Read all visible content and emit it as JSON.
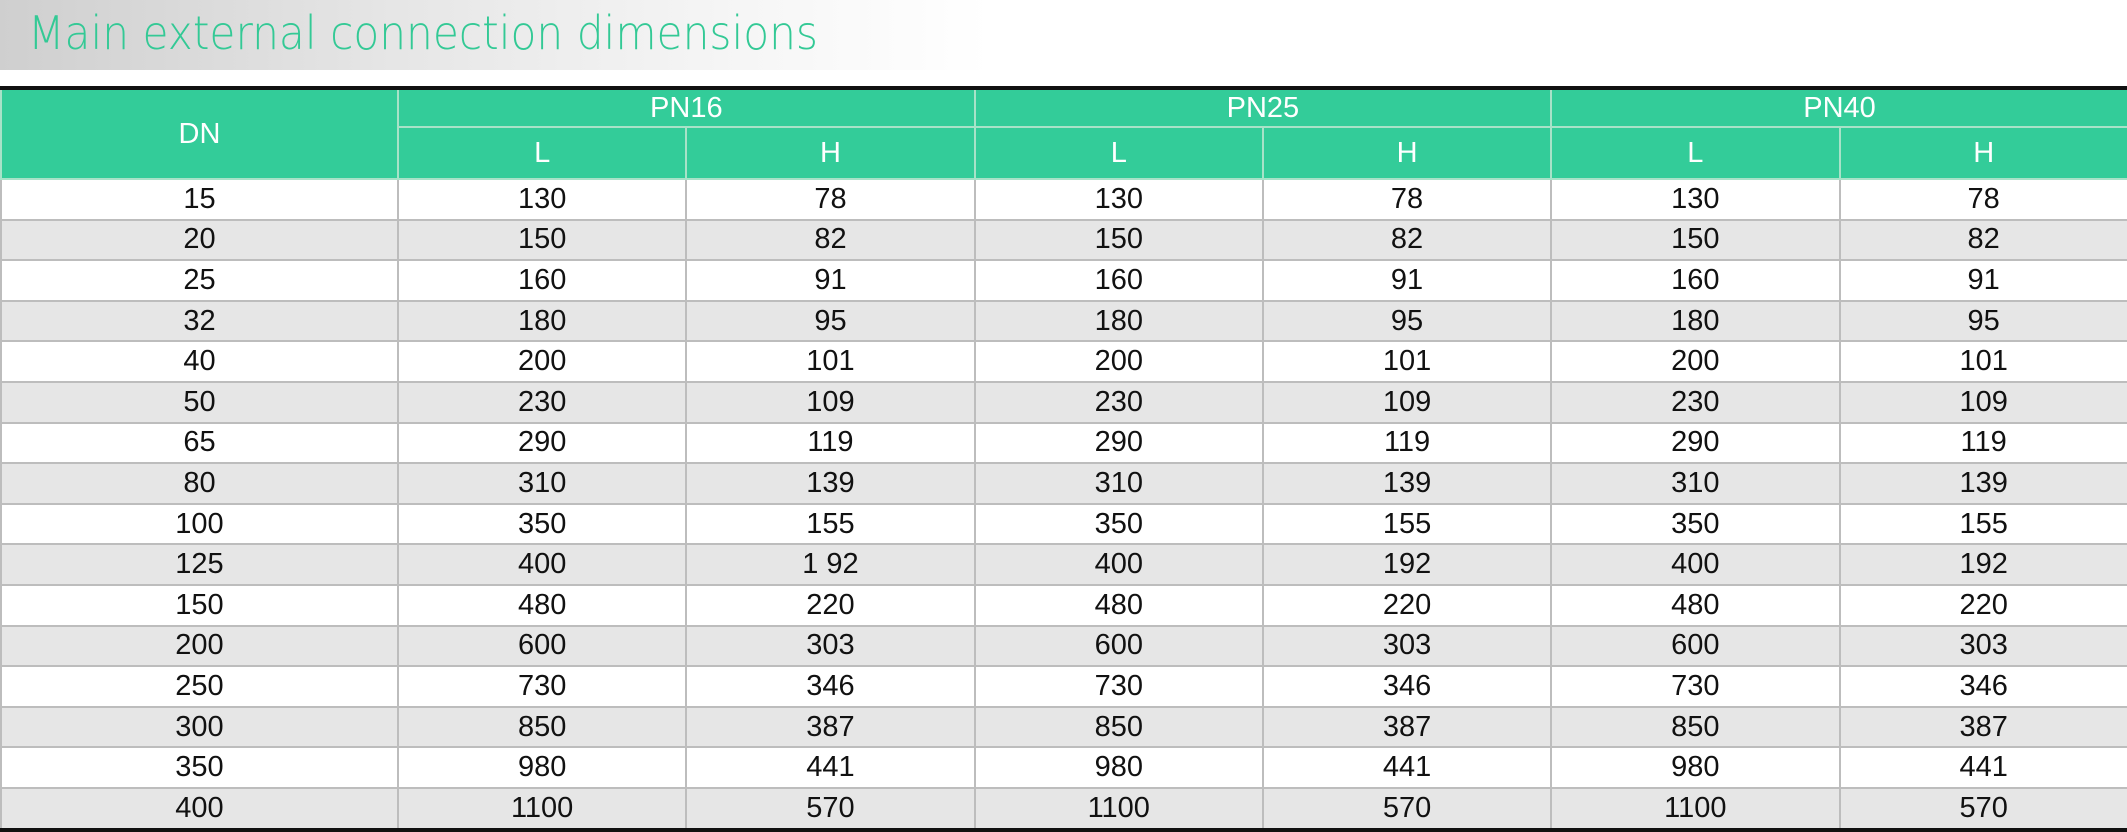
{
  "title": "Main external connection dimensions",
  "colors": {
    "accent": "#33cc99",
    "title": "#33c995",
    "stripe": "#e6e6e6"
  },
  "table": {
    "dn_header": "DN",
    "groups": [
      "PN16",
      "PN25",
      "PN40"
    ],
    "sub_headers": [
      "L",
      "H",
      "L",
      "H",
      "L",
      "H"
    ],
    "rows": [
      [
        "15",
        "130",
        "78",
        "130",
        "78",
        "130",
        "78"
      ],
      [
        "20",
        "150",
        "82",
        "150",
        "82",
        "150",
        "82"
      ],
      [
        "25",
        "160",
        "91",
        "160",
        "91",
        "160",
        "91"
      ],
      [
        "32",
        "180",
        "95",
        "180",
        "95",
        "180",
        "95"
      ],
      [
        "40",
        "200",
        "101",
        "200",
        "101",
        "200",
        "101"
      ],
      [
        "50",
        "230",
        "109",
        "230",
        "109",
        "230",
        "109"
      ],
      [
        "65",
        "290",
        "119",
        "290",
        "119",
        "290",
        "119"
      ],
      [
        "80",
        "310",
        "139",
        "310",
        "139",
        "310",
        "139"
      ],
      [
        "100",
        "350",
        "155",
        "350",
        "155",
        "350",
        "155"
      ],
      [
        "125",
        "400",
        "1 92",
        "400",
        "192",
        "400",
        "192"
      ],
      [
        "150",
        "480",
        "220",
        "480",
        "220",
        "480",
        "220"
      ],
      [
        "200",
        "600",
        "303",
        "600",
        "303",
        "600",
        "303"
      ],
      [
        "250",
        "730",
        "346",
        "730",
        "346",
        "730",
        "346"
      ],
      [
        "300",
        "850",
        "387",
        "850",
        "387",
        "850",
        "387"
      ],
      [
        "350",
        "980",
        "441",
        "980",
        "441",
        "980",
        "441"
      ],
      [
        "400",
        "1100",
        "570",
        "1100",
        "570",
        "1100",
        "570"
      ]
    ]
  }
}
